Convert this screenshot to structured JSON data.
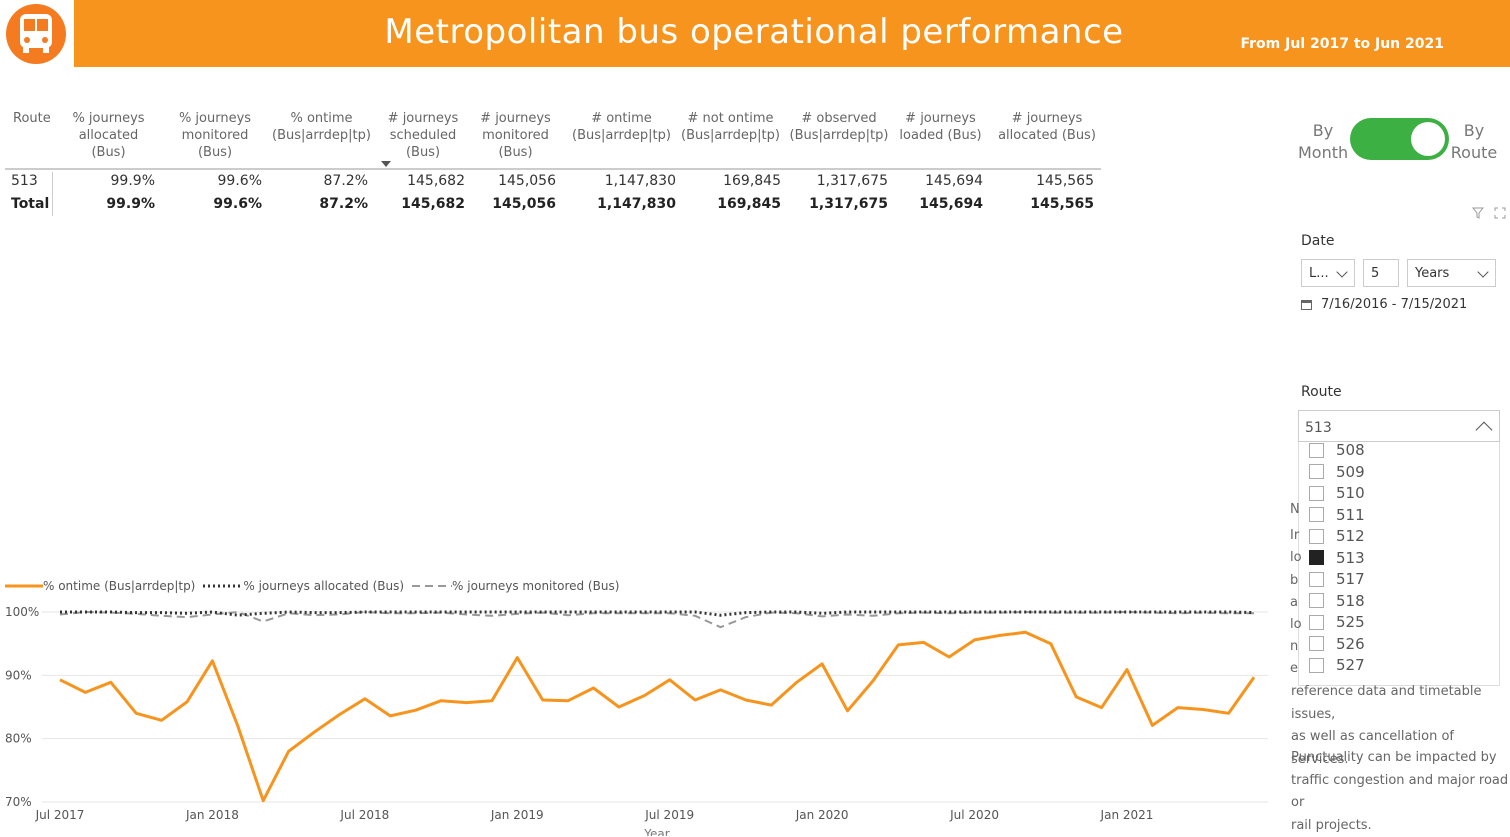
{
  "header": {
    "title": "Metropolitan bus operational performance",
    "range": "From Jul 2017 to Jun 2021",
    "logo_icon": "bus-icon"
  },
  "table": {
    "columns": [
      "Route",
      "% journeys allocated (Bus)",
      "% journeys monitored (Bus)",
      "% ontime (Bus|arrdep|tp)",
      "# journeys scheduled (Bus)",
      "# journeys monitored (Bus)",
      "# ontime (Bus|arrdep|tp)",
      "# not ontime (Bus|arrdep|tp)",
      "# observed (Bus|arrdep|tp)",
      "# journeys loaded (Bus)",
      "# journeys allocated (Bus)"
    ],
    "header_lines": [
      [
        "Route"
      ],
      [
        "% journeys",
        "allocated",
        "(Bus)"
      ],
      [
        "% journeys",
        "monitored",
        "(Bus)"
      ],
      [
        "% ontime",
        "(Bus|arrdep|tp)"
      ],
      [
        "# journeys",
        "scheduled",
        "(Bus)"
      ],
      [
        "# journeys",
        "monitored",
        "(Bus)"
      ],
      [
        "# ontime",
        "(Bus|arrdep|tp)"
      ],
      [
        "# not ontime",
        "(Bus|arrdep|tp)"
      ],
      [
        "# observed",
        "(Bus|arrdep|tp)"
      ],
      [
        "# journeys",
        "loaded (Bus)"
      ],
      [
        "# journeys",
        "allocated (Bus)"
      ]
    ],
    "rows": [
      [
        "513",
        "99.9%",
        "99.6%",
        "87.2%",
        "145,682",
        "145,056",
        "1,147,830",
        "169,845",
        "1,317,675",
        "145,694",
        "145,565"
      ]
    ],
    "total": [
      "Total",
      "99.9%",
      "99.6%",
      "87.2%",
      "145,682",
      "145,056",
      "1,147,830",
      "169,845",
      "1,317,675",
      "145,694",
      "145,565"
    ]
  },
  "toggle": {
    "left_label": "By Month",
    "right_label": "By Route",
    "state": "By Route"
  },
  "date_filter": {
    "label": "Date",
    "mode": "L...",
    "count": "5",
    "unit": "Years",
    "range": "7/16/2016 - 7/15/2021"
  },
  "route_filter": {
    "label": "Route",
    "selected": "513",
    "options": [
      {
        "label": "508",
        "checked": false
      },
      {
        "label": "509",
        "checked": false
      },
      {
        "label": "510",
        "checked": false
      },
      {
        "label": "511",
        "checked": false
      },
      {
        "label": "512",
        "checked": false
      },
      {
        "label": "513",
        "checked": true
      },
      {
        "label": "517",
        "checked": false
      },
      {
        "label": "518",
        "checked": false
      },
      {
        "label": "525",
        "checked": false
      },
      {
        "label": "526",
        "checked": false
      },
      {
        "label": "527",
        "checked": false
      }
    ]
  },
  "notes": {
    "fragments": [
      "N",
      "Ir",
      "lo",
      "b",
      "a",
      "lo",
      "n",
      "e"
    ],
    "para1_tail": [
      "reference data and timetable issues,",
      "as well as cancellation of services."
    ],
    "para2": [
      "Punctuality can be impacted by",
      "traffic congestion and major road or",
      "rail projects."
    ]
  },
  "chart_data": {
    "type": "line",
    "xlabel": "Year",
    "x_ticks": [
      "Jul 2017",
      "Jan 2018",
      "Jul 2018",
      "Jan 2019",
      "Jul 2019",
      "Jan 2020",
      "Jul 2020",
      "Jan 2021"
    ],
    "y_ticks": [
      "100%",
      "90%",
      "80%",
      "70%"
    ],
    "ylim": [
      70,
      100
    ],
    "x": [
      "Jul 2017",
      "Aug 2017",
      "Sep 2017",
      "Oct 2017",
      "Nov 2017",
      "Dec 2017",
      "Jan 2018",
      "Feb 2018",
      "Mar 2018",
      "Apr 2018",
      "May 2018",
      "Jun 2018",
      "Jul 2018",
      "Aug 2018",
      "Sep 2018",
      "Oct 2018",
      "Nov 2018",
      "Dec 2018",
      "Jan 2019",
      "Feb 2019",
      "Mar 2019",
      "Apr 2019",
      "May 2019",
      "Jun 2019",
      "Jul 2019",
      "Aug 2019",
      "Sep 2019",
      "Oct 2019",
      "Nov 2019",
      "Dec 2019",
      "Jan 2020",
      "Feb 2020",
      "Mar 2020",
      "Apr 2020",
      "May 2020",
      "Jun 2020",
      "Jul 2020",
      "Aug 2020",
      "Sep 2020",
      "Oct 2020",
      "Nov 2020",
      "Dec 2020",
      "Jan 2021",
      "Feb 2021",
      "Mar 2021",
      "Apr 2021",
      "May 2021",
      "Jun 2021"
    ],
    "legend_position": "top-left",
    "series": [
      {
        "name": "% ontime (Bus|arrdep|tp)",
        "color": "#f7941d",
        "style": "solid",
        "values": [
          89.3,
          87.3,
          88.9,
          84.0,
          82.9,
          85.8,
          92.3,
          82.0,
          70.2,
          78.0,
          81.0,
          83.8,
          86.3,
          83.6,
          84.5,
          86.0,
          85.7,
          86.0,
          92.8,
          86.1,
          86.0,
          88.0,
          85.0,
          86.8,
          89.3,
          86.1,
          87.7,
          86.1,
          85.3,
          88.9,
          91.8,
          84.4,
          89.1,
          94.8,
          95.2,
          92.9,
          95.6,
          96.3,
          96.8,
          95.0,
          86.6,
          84.9,
          90.9,
          82.1,
          84.9,
          84.6,
          84.0,
          89.7
        ]
      },
      {
        "name": "% journeys allocated (Bus)",
        "color": "#333333",
        "style": "dotted",
        "values": [
          100,
          100,
          100,
          99.9,
          99.9,
          99.8,
          100,
          99.5,
          99.8,
          100,
          99.9,
          99.9,
          100,
          100,
          100,
          100,
          100,
          100,
          100,
          100,
          100,
          100,
          100,
          100,
          100,
          100,
          99.5,
          99.9,
          100,
          100,
          99.8,
          100,
          100,
          100,
          100,
          100,
          100,
          100,
          100,
          100,
          100,
          100,
          100,
          100,
          100,
          100,
          100,
          99.9
        ]
      },
      {
        "name": "% journeys monitored (Bus)",
        "color": "#999999",
        "style": "dashed",
        "values": [
          99.6,
          100,
          99.9,
          99.7,
          99.4,
          99.2,
          99.6,
          100,
          98.5,
          99.8,
          99.5,
          99.6,
          100,
          99.8,
          99.8,
          99.9,
          99.6,
          99.4,
          99.7,
          99.9,
          99.5,
          99.8,
          99.8,
          99.8,
          99.8,
          99.4,
          97.6,
          99.2,
          99.9,
          99.8,
          99.3,
          99.6,
          99.4,
          99.8,
          99.9,
          99.8,
          99.9,
          99.9,
          100,
          99.9,
          99.9,
          99.9,
          100,
          99.9,
          99.8,
          99.9,
          99.8,
          99.8
        ]
      }
    ]
  }
}
